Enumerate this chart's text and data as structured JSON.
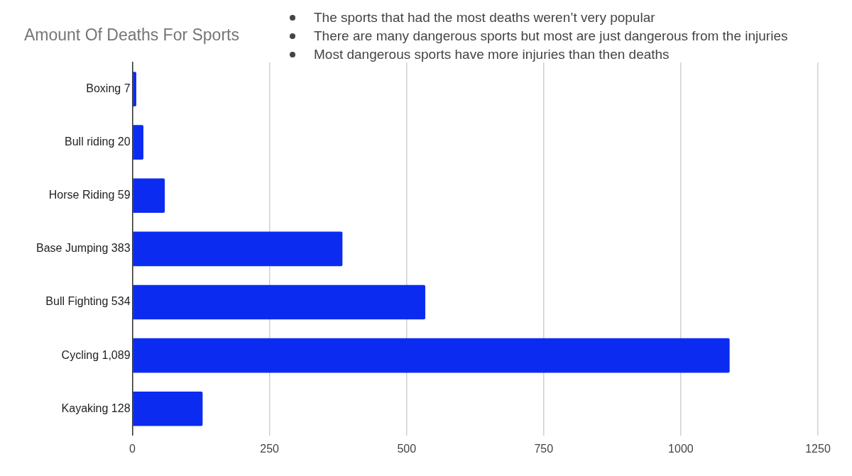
{
  "chart_data": {
    "type": "bar",
    "orientation": "horizontal",
    "title": "Amount Of Deaths For Sports",
    "annotations": [
      "The sports that had the most deaths weren’t very popular",
      "There are many dangerous sports but most are just dangerous from the injuries",
      "Most dangerous sports have more injuries than then deaths"
    ],
    "categories": [
      "Boxing 7",
      "Bull riding 20",
      "Horse Riding 59",
      "Base Jumping 383",
      "Bull Fighting 534",
      "Cycling 1,089",
      "Kayaking 128"
    ],
    "values": [
      7,
      20,
      59,
      383,
      534,
      1089,
      128
    ],
    "color": "#0b2cf0",
    "xlim": [
      0,
      1250
    ],
    "xticks": [
      0,
      250,
      500,
      750,
      1000,
      1250
    ],
    "grid": "x",
    "legend": false
  }
}
